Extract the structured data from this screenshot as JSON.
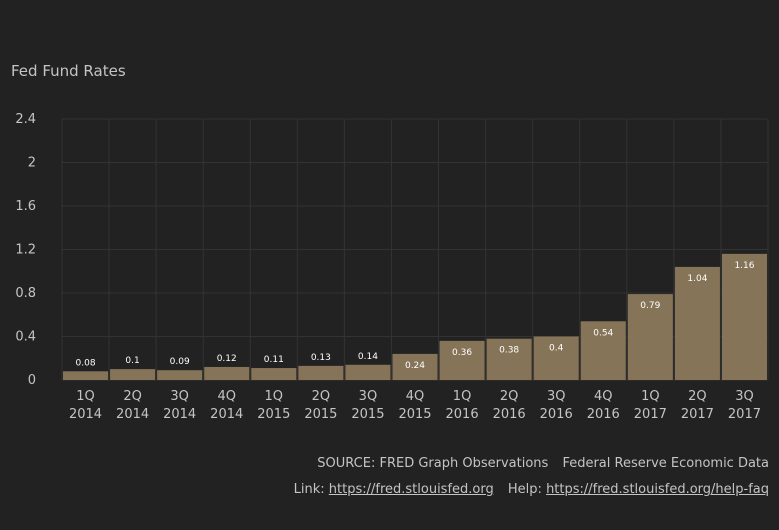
{
  "chart_data": {
    "type": "bar",
    "title": "Fed Fund Rates",
    "xlabel": "",
    "ylabel": "",
    "ylim": [
      0,
      2.4
    ],
    "yticks": [
      "2.4",
      "2",
      "1.6",
      "1.2",
      "0.8",
      "0.4",
      "0"
    ],
    "ytick_values": [
      2.4,
      2,
      1.6,
      1.2,
      0.8,
      0.4,
      0
    ],
    "grid": true,
    "categories": [
      [
        "1Q",
        "2014"
      ],
      [
        "2Q",
        "2014"
      ],
      [
        "3Q",
        "2014"
      ],
      [
        "4Q",
        "2014"
      ],
      [
        "1Q",
        "2015"
      ],
      [
        "2Q",
        "2015"
      ],
      [
        "3Q",
        "2015"
      ],
      [
        "4Q",
        "2015"
      ],
      [
        "1Q",
        "2016"
      ],
      [
        "2Q",
        "2016"
      ],
      [
        "3Q",
        "2016"
      ],
      [
        "4Q",
        "2016"
      ],
      [
        "1Q",
        "2017"
      ],
      [
        "2Q",
        "2017"
      ],
      [
        "3Q",
        "2017"
      ]
    ],
    "values": [
      0.08,
      0.1,
      0.09,
      0.12,
      0.11,
      0.13,
      0.14,
      0.24,
      0.36,
      0.38,
      0.4,
      0.54,
      0.79,
      1.04,
      1.16
    ],
    "value_labels": [
      "0.08",
      "0.1",
      "0.09",
      "0.12",
      "0.11",
      "0.13",
      "0.14",
      "0.24",
      "0.36",
      "0.38",
      "0.4",
      "0.54",
      "0.79",
      "1.04",
      "1.16"
    ],
    "bar_color": "#857457",
    "background_color": "#222222",
    "grid_color": "#333333"
  },
  "source": {
    "source_label": "SOURCE:",
    "source_name": "FRED Graph Observations",
    "source_org": "Federal Reserve Economic Data",
    "link_label": "Link:",
    "link_url": "https://fred.stlouisfed.org",
    "help_label": "Help:",
    "help_url": "https://fred.stlouisfed.org/help-faq"
  }
}
